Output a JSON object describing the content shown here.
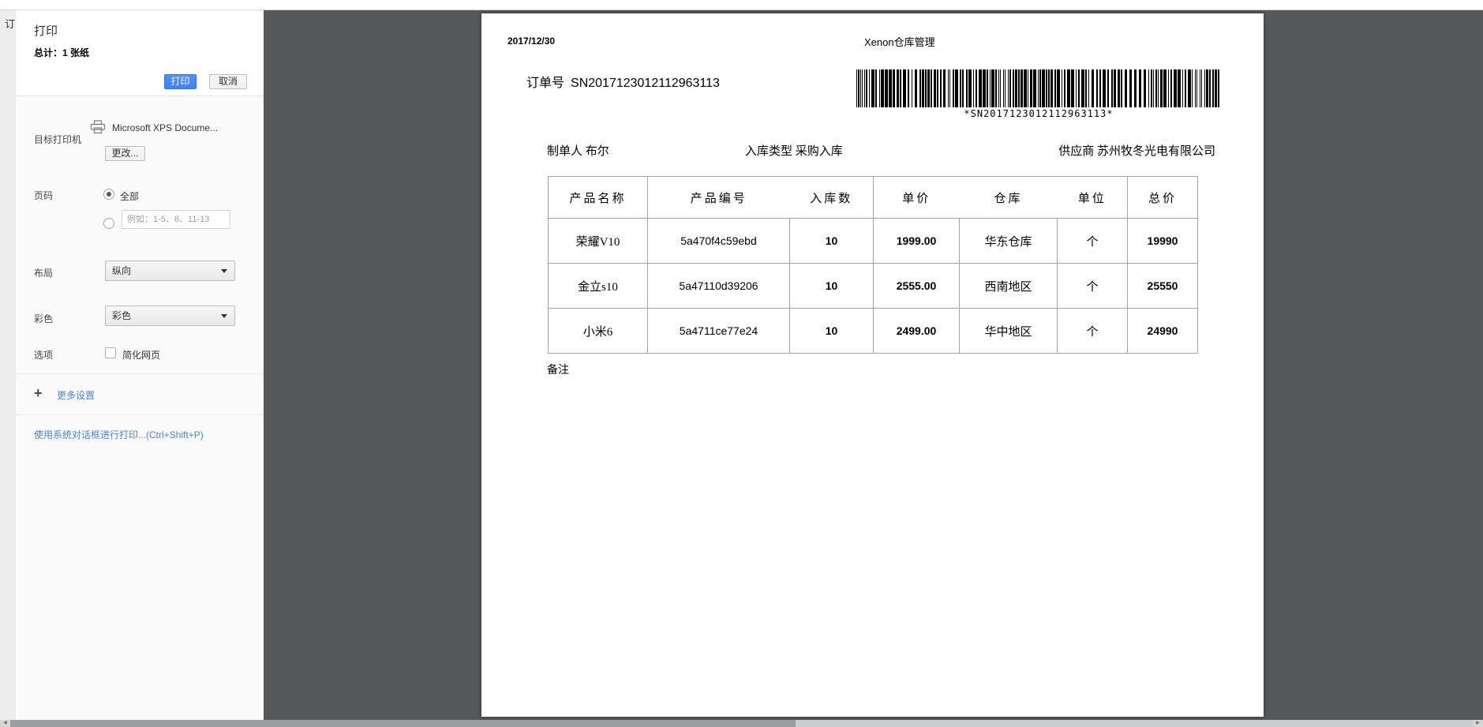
{
  "print_dialog": {
    "title": "打印",
    "total_label": "总计：1 张纸",
    "print_button": "打印",
    "cancel_button": "取消",
    "destination": {
      "label": "目标打印机",
      "printer_name": "Microsoft XPS Docume...",
      "change_button": "更改..."
    },
    "pages": {
      "label": "页码",
      "all_option": "全部",
      "range_placeholder": "例如：1-5、8、11-13"
    },
    "layout": {
      "label": "布局",
      "value": "纵向"
    },
    "color": {
      "label": "彩色",
      "value": "彩色"
    },
    "options": {
      "label": "选项",
      "checkbox_label": "简化网页"
    },
    "more_settings_label": "更多设置",
    "system_dialog_link": "使用系统对话框进行打印...(Ctrl+Shift+P)"
  },
  "background_page": {
    "clipped_text": "订"
  },
  "document": {
    "date": "2017/12/30",
    "app_title": "Xenon仓库管理",
    "order_label": "订单号",
    "order_number": "SN2017123012112963113",
    "barcode_text": "*SN2017123012112963113*",
    "creator_label": "制单人",
    "creator": "布尔",
    "stock_type_label": "入库类型",
    "stock_type": "采购入库",
    "supplier_label": "供应商",
    "supplier": "苏州牧冬光电有限公司",
    "remarks_label": "备注",
    "table": {
      "headers": [
        "产品名称",
        "产品编号",
        "入库数",
        "单价",
        "仓库",
        "单位",
        "总价"
      ],
      "rows": [
        [
          "荣耀V10",
          "5a470f4c59ebd",
          "10",
          "1999.00",
          "华东仓库",
          "个",
          "19990"
        ],
        [
          "金立s10",
          "5a47110d39206",
          "10",
          "2555.00",
          "西南地区",
          "个",
          "25550"
        ],
        [
          "小米6",
          "5a4711ce77e24",
          "10",
          "2499.00",
          "华中地区",
          "个",
          "24990"
        ]
      ]
    }
  },
  "colors": {
    "primary_button": "#4d90fe",
    "link_blue": "#4285f4",
    "preview_background": "#575859",
    "dialog_background": "#fbfbfb"
  }
}
